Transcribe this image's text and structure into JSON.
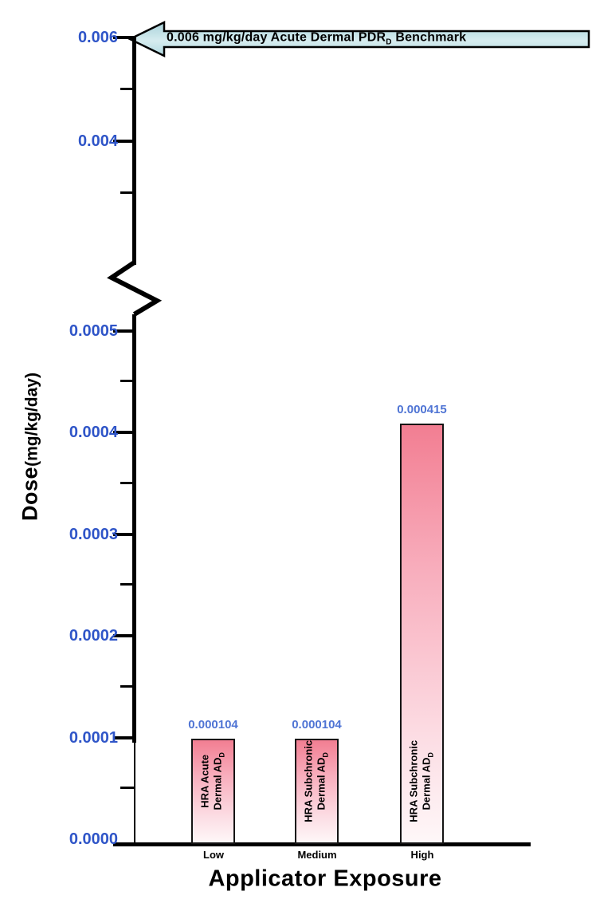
{
  "colors": {
    "tick_label": "#2f55c8",
    "value_label": "#4f74d4",
    "bar_top": "#f27e92",
    "bar_bottom": "#fef7f8",
    "arrow_fill_light": "#d6ecef",
    "arrow_fill_dark": "#a9d2da",
    "axis": "#000000"
  },
  "benchmark": {
    "text_main": "0.006 mg/kg/day Acute Dermal PDR",
    "text_sub": "D",
    "text_end": " Benchmark"
  },
  "y_axis": {
    "title_main": "Dose",
    "title_unit": "(mg/kg/day)",
    "top_ticks": [
      "0.006",
      "0.004"
    ],
    "bottom_ticks": [
      "0.0005",
      "0.0004",
      "0.0003",
      "0.0002",
      "0.0001",
      "0.0000"
    ]
  },
  "x_axis": {
    "title": "Applicator Exposure",
    "categories": [
      "Low",
      "Medium",
      "High"
    ]
  },
  "bars": [
    {
      "category": "Low",
      "value_label": "0.000104",
      "label_line1": "HRA Acute",
      "label_line2": "Dermal AD",
      "label_sub": "D"
    },
    {
      "category": "Medium",
      "value_label": "0.000104",
      "label_line1": "HRA Subchronic",
      "label_line2": "Dermal AD",
      "label_sub": "D"
    },
    {
      "category": "High",
      "value_label": "0.000415",
      "label_line1": "HRA Subchronic",
      "label_line2": "Dermal AD",
      "label_sub": "D"
    }
  ],
  "chart_data": {
    "type": "bar",
    "categories": [
      "Low",
      "Medium",
      "High"
    ],
    "values": [
      0.000104,
      0.000104,
      0.000415
    ],
    "value_labels": [
      "0.000104",
      "0.000104",
      "0.000415"
    ],
    "bar_annotations": [
      "HRA Acute Dermal AD_D",
      "HRA Subchronic Dermal AD_D",
      "HRA Subchronic Dermal AD_D"
    ],
    "xlabel": "Applicator Exposure",
    "ylabel": "Dose(mg/kg/day)",
    "y_ticks_lower": [
      0.0,
      0.0001,
      0.0002,
      0.0003,
      0.0004,
      0.0005
    ],
    "y_ticks_upper": [
      0.004,
      0.006
    ],
    "y_axis_break": true,
    "y_axis_break_between": [
      0.0005,
      0.003
    ],
    "benchmark_line": {
      "value": 0.006,
      "label": "0.006 mg/kg/day Acute Dermal PDR_D Benchmark",
      "style": "left-pointing-arrow"
    },
    "grid": false,
    "legend": false
  }
}
